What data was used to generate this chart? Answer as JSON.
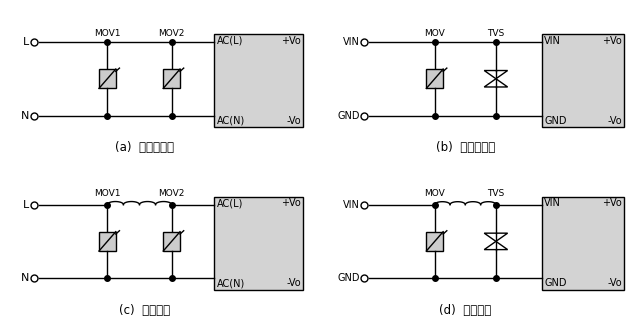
{
  "background": "#ffffff",
  "box_fill": "#d3d3d3",
  "line_color": "#000000",
  "captions": [
    "(a)  不恰当应用",
    "(b)  不恰当应用",
    "(c)  推荐应用",
    "(d)  推荐应用"
  ],
  "lw": 1.0,
  "dot_size": 4.0,
  "term_size": 5.0
}
